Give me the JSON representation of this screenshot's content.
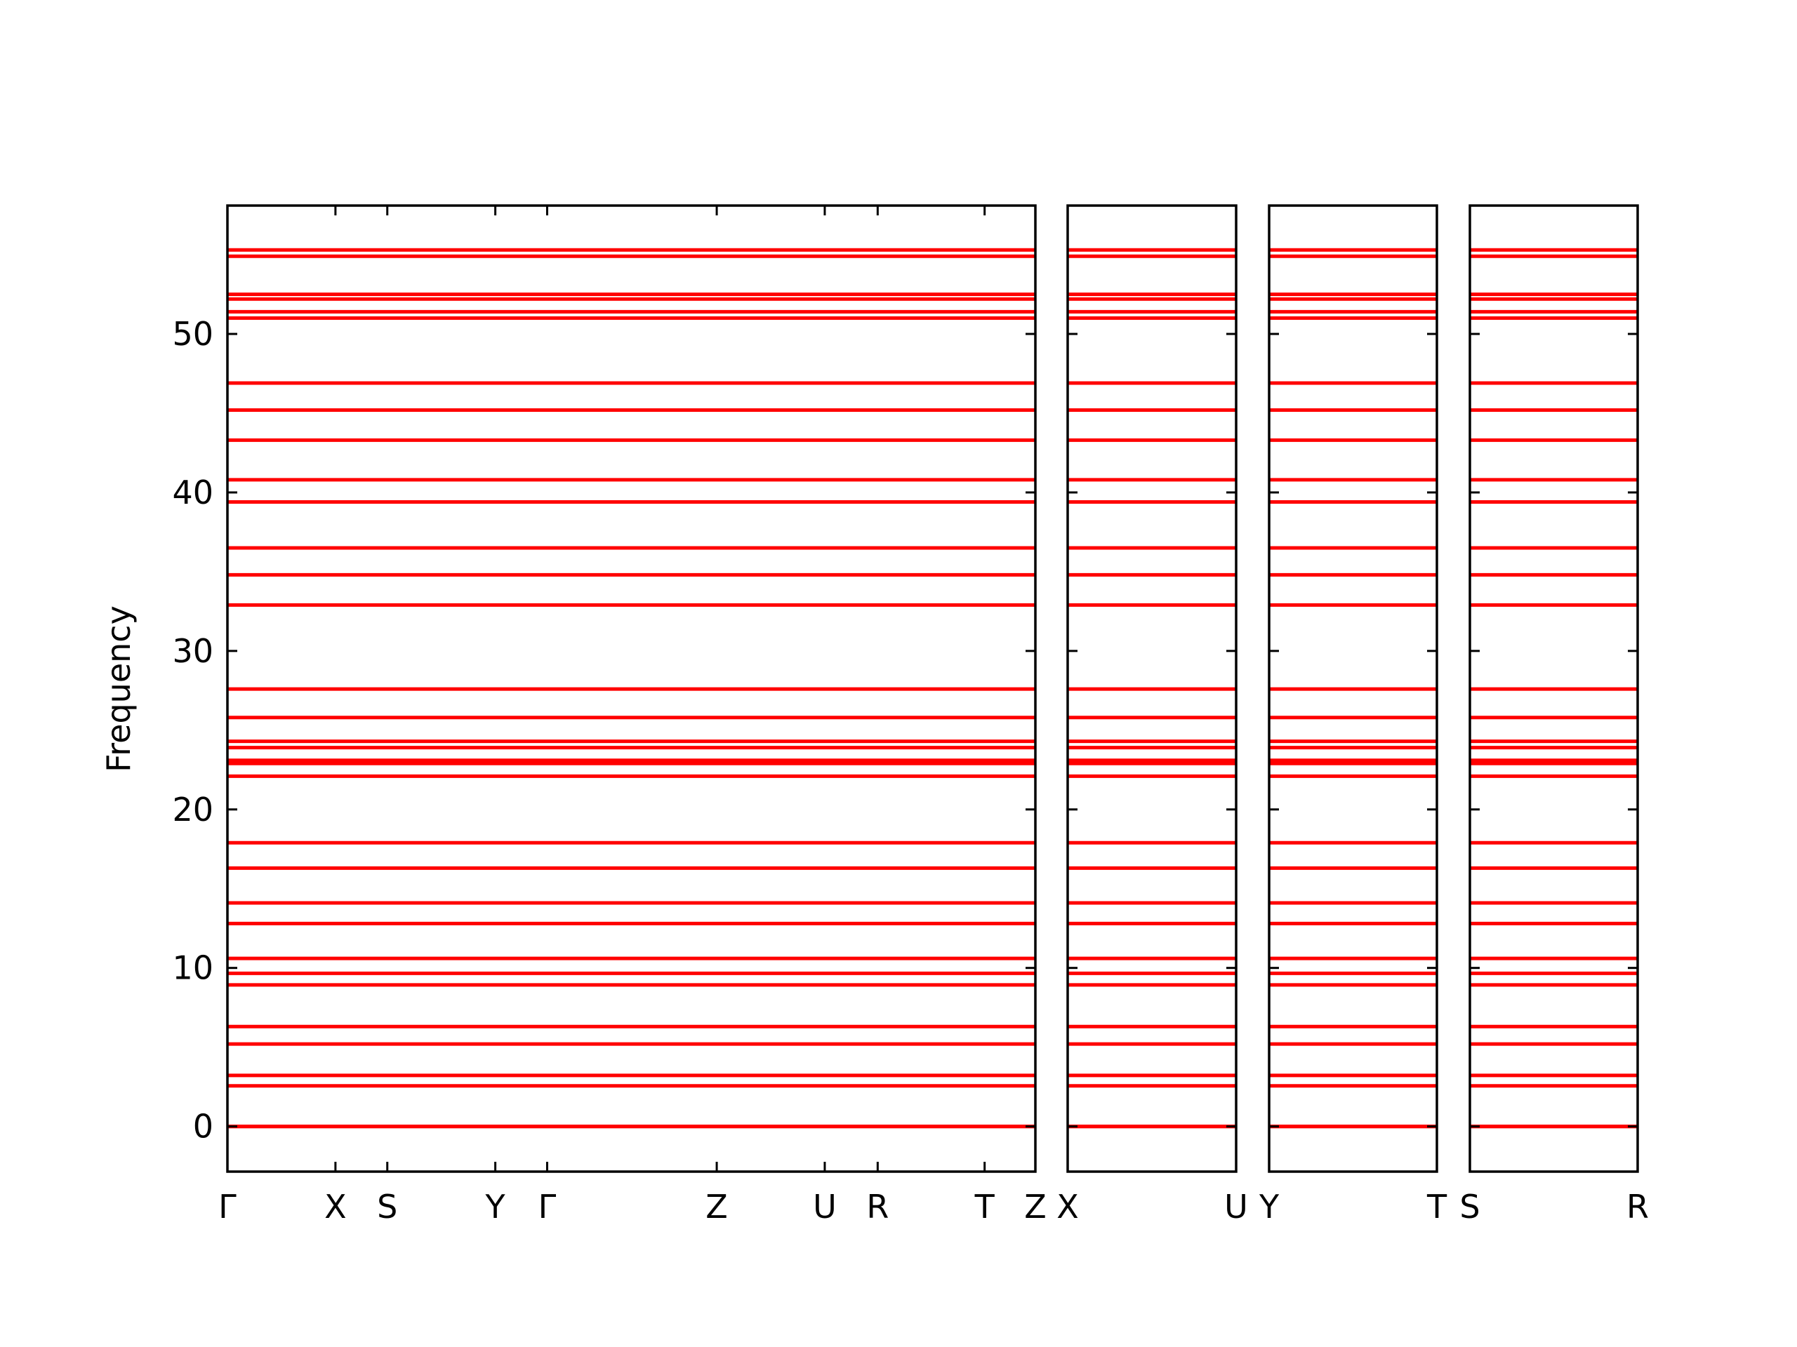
{
  "chart_data": {
    "type": "line",
    "ylabel": "Frequency",
    "color": "#ff0000",
    "ylim": [
      -2.85,
      58.1
    ],
    "yticks": [
      0,
      10,
      20,
      30,
      40,
      50
    ],
    "bands": [
      0,
      0,
      0,
      2.56,
      3.22,
      5.2,
      6.3,
      8.93,
      9.66,
      10.6,
      12.8,
      14.1,
      16.3,
      17.9,
      22.1,
      22.9,
      23.1,
      23.9,
      24.3,
      25.8,
      27.6,
      32.9,
      34.8,
      36.5,
      39.4,
      40.8,
      43.3,
      45.2,
      46.9,
      51.0,
      51.4,
      52.2,
      52.5,
      54.9,
      55.3
    ],
    "panels": [
      {
        "xlim": [
          0,
          7.48
        ],
        "xticks": [
          {
            "value": 0,
            "label": "Γ"
          },
          {
            "value": 1.0,
            "label": "X"
          },
          {
            "value": 1.48,
            "label": "S"
          },
          {
            "value": 2.48,
            "label": "Y"
          },
          {
            "value": 2.96,
            "label": "Γ"
          },
          {
            "value": 4.53,
            "label": "Z"
          },
          {
            "value": 5.53,
            "label": "U"
          },
          {
            "value": 6.02,
            "label": "R"
          },
          {
            "value": 7.01,
            "label": "T"
          },
          {
            "value": 7.48,
            "label": "Z"
          }
        ]
      },
      {
        "xlim": [
          0,
          1.56
        ],
        "xticks": [
          {
            "value": 0,
            "label": "X"
          },
          {
            "value": 1.56,
            "label": "U"
          }
        ]
      },
      {
        "xlim": [
          0,
          1.56
        ],
        "xticks": [
          {
            "value": 0,
            "label": "Y"
          },
          {
            "value": 1.56,
            "label": "T"
          }
        ]
      },
      {
        "xlim": [
          0,
          1.56
        ],
        "xticks": [
          {
            "value": 0,
            "label": "S"
          },
          {
            "value": 1.56,
            "label": "R"
          }
        ]
      }
    ]
  }
}
